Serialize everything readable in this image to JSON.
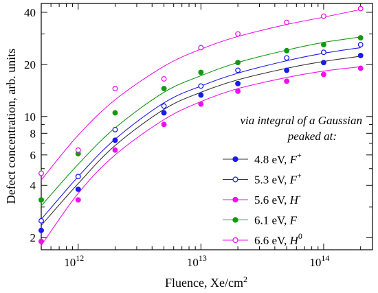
{
  "chart_data": {
    "type": "scatter",
    "xlabel": "Fluence, Xe/cm",
    "xlabel_sup": "2",
    "ylabel": "Defect concentration, arb. units",
    "x_scale": "log",
    "y_scale": "log",
    "xlim": [
      500000000000.0,
      250000000000000.0
    ],
    "ylim": [
      1.7,
      45
    ],
    "x_ticks": [
      {
        "value": 1000000000000.0,
        "base": "10",
        "exp": "12"
      },
      {
        "value": 10000000000000.0,
        "base": "10",
        "exp": "13"
      },
      {
        "value": 100000000000000.0,
        "base": "10",
        "exp": "14"
      }
    ],
    "y_ticks": [
      {
        "value": 2,
        "label": "2"
      },
      {
        "value": 4,
        "label": "4"
      },
      {
        "value": 6,
        "label": "6"
      },
      {
        "value": 8,
        "label": "8"
      },
      {
        "value": 10,
        "label": "10"
      },
      {
        "value": 20,
        "label": "20"
      },
      {
        "value": 40,
        "label": "40"
      }
    ],
    "grid": false,
    "legend_title_lines": [
      "via integral of a Gaussian",
      "peaked at:"
    ],
    "legend_position": "right",
    "x": [
      500000000000.0,
      1000000000000.0,
      2000000000000.0,
      5000000000000.0,
      10000000000000.0,
      20000000000000.0,
      50000000000000.0,
      100000000000000.0,
      200000000000000.0
    ],
    "series": [
      {
        "label_main": "4.8 eV, ",
        "label_ion": "F",
        "label_sup": "+",
        "color": "#1a1aee",
        "line_color": "#333333",
        "filled": true,
        "values": [
          2.2,
          3.8,
          7.3,
          10.5,
          13.3,
          15.5,
          18.5,
          20.5,
          22.5
        ],
        "fit": [
          2.35,
          4.1,
          6.8,
          11.0,
          13.8,
          16.3,
          19.0,
          20.8,
          22.3
        ]
      },
      {
        "label_main": "5.3 eV, ",
        "label_ion": "F",
        "label_sup": "+",
        "color": "#1a1aee",
        "line_color": "#1a1aee",
        "filled": false,
        "values": [
          2.5,
          4.5,
          8.4,
          11.5,
          15.0,
          18.5,
          21.8,
          23.5,
          26.0
        ],
        "fit": [
          2.55,
          4.5,
          7.4,
          12.0,
          15.0,
          17.8,
          21.0,
          23.2,
          25.0
        ]
      },
      {
        "label_main": "5.6 eV, ",
        "label_ion": "H",
        "label_sup": "-",
        "color": "#ee11ee",
        "line_color": "#ee11ee",
        "filled": true,
        "values": [
          1.9,
          3.3,
          6.4,
          9.0,
          11.8,
          14.0,
          16.0,
          17.5,
          19.0
        ],
        "fit": [
          1.8,
          3.6,
          6.0,
          9.6,
          12.2,
          14.5,
          16.8,
          18.3,
          19.4
        ]
      },
      {
        "label_main": "6.1 eV, ",
        "label_ion": "F",
        "label_sup": "",
        "color": "#119911",
        "line_color": "#119911",
        "filled": true,
        "values": [
          3.3,
          6.1,
          10.5,
          14.5,
          18.0,
          20.5,
          24.0,
          26.0,
          28.5
        ],
        "fit": [
          3.05,
          5.3,
          8.6,
          13.8,
          17.2,
          20.5,
          24.2,
          26.8,
          28.8
        ]
      },
      {
        "label_main": "6.6 eV, ",
        "label_ion": "H",
        "label_sup": "0",
        "color": "#ee11ee",
        "line_color": "#ee11ee",
        "filled": false,
        "values": [
          4.7,
          6.4,
          14.5,
          16.5,
          25.0,
          30.0,
          35.0,
          38.0,
          42.0
        ],
        "fit": [
          4.3,
          7.8,
          12.5,
          19.5,
          24.5,
          29.0,
          34.0,
          37.5,
          41.5
        ]
      }
    ]
  }
}
